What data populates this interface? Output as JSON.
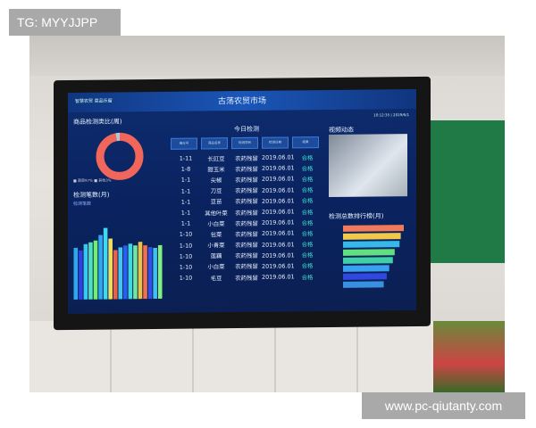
{
  "watermarks": {
    "top_left": "TG: MYYJJPP",
    "bottom_right": "www.pc-qiutanty.com"
  },
  "dashboard": {
    "logo_text": "智慧农贸 菜品乐留",
    "title": "古荡农贸市场",
    "time": "10:12:35",
    "date": "2019/6/1",
    "donut": {
      "title": "商品检测类比(周)",
      "legend": "■ 蔬菜97% ■ 其他3%",
      "values": [
        97,
        3
      ],
      "colors": [
        "#f0665a",
        "#b8c4d0"
      ]
    },
    "monthly": {
      "title": "检测笔数(月)",
      "subtitle": "检测笔数",
      "values": [
        58,
        55,
        62,
        64,
        66,
        72,
        80,
        68,
        55,
        58,
        60,
        62,
        60,
        64,
        60,
        58,
        57,
        60
      ]
    },
    "table": {
      "title": "今日检测",
      "headers": [
        "摊位号",
        "商品名称",
        "检测项目",
        "检测日期",
        "结果"
      ],
      "rows": [
        [
          "1-11",
          "长豇豆",
          "农药残留",
          "2019.06.01",
          "合格"
        ],
        [
          "1-8",
          "甜玉米",
          "农药残留",
          "2019.06.01",
          "合格"
        ],
        [
          "1-1",
          "尖椒",
          "农药残留",
          "2019.06.01",
          "合格"
        ],
        [
          "1-1",
          "刀豆",
          "农药残留",
          "2019.06.01",
          "合格"
        ],
        [
          "1-1",
          "豆苗",
          "农药残留",
          "2019.06.01",
          "合格"
        ],
        [
          "1-1",
          "其他叶菜",
          "农药残留",
          "2019.06.01",
          "合格"
        ],
        [
          "1-1",
          "小白菜",
          "农药残留",
          "2019.06.01",
          "合格"
        ],
        [
          "1-10",
          "包菜",
          "农药残留",
          "2019.06.01",
          "合格"
        ],
        [
          "1-10",
          "小青菜",
          "农药残留",
          "2019.06.01",
          "合格"
        ],
        [
          "1-10",
          "莲藕",
          "农药残留",
          "2019.06.01",
          "合格"
        ],
        [
          "1-10",
          "小白菜",
          "农药残留",
          "2019.06.01",
          "合格"
        ],
        [
          "1-10",
          "毛豆",
          "农药残留",
          "2019.06.01",
          "合格"
        ]
      ]
    },
    "video": {
      "title": "视频动态"
    },
    "ranking": {
      "title": "检测总数排行榜(月)",
      "values": [
        100,
        95,
        93,
        85,
        82,
        76,
        72,
        67
      ],
      "colors": [
        "#f07a5a",
        "#f0c84a",
        "#38b8e8",
        "#60e080",
        "#40d0a8",
        "#3aa0f0",
        "#3048e0",
        "#3890e0"
      ]
    }
  }
}
